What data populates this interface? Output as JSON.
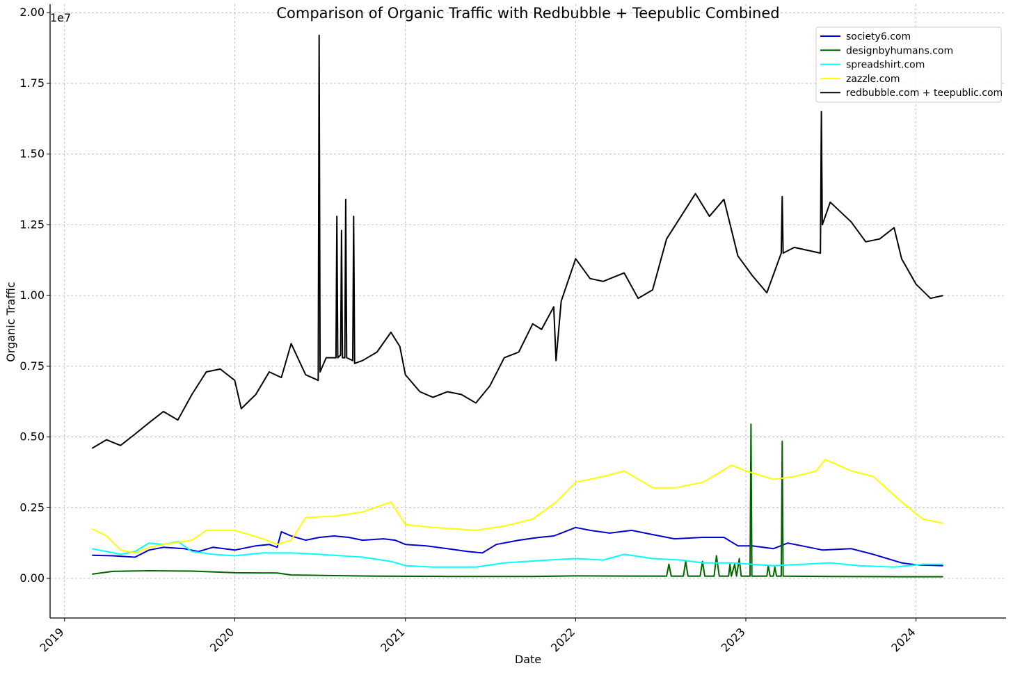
{
  "chart_data": {
    "type": "line",
    "title": "Comparison of Organic Traffic with Redbubble + Teepublic Combined",
    "xlabel": "Date",
    "ylabel": "Organic Traffic",
    "y_offset_label": "1e7",
    "x_type": "date",
    "xlim": [
      "2018-12-01",
      "2024-07-12"
    ],
    "ylim": [
      -1400000,
      20300000
    ],
    "x_ticks": [
      {
        "value": "2019-01-01",
        "label": "2019"
      },
      {
        "value": "2020-01-01",
        "label": "2020"
      },
      {
        "value": "2021-01-01",
        "label": "2021"
      },
      {
        "value": "2022-01-01",
        "label": "2022"
      },
      {
        "value": "2023-01-01",
        "label": "2023"
      },
      {
        "value": "2024-01-01",
        "label": "2024"
      }
    ],
    "y_ticks": [
      {
        "value": 0,
        "label": "0.00"
      },
      {
        "value": 2500000,
        "label": "0.25"
      },
      {
        "value": 5000000,
        "label": "0.50"
      },
      {
        "value": 7500000,
        "label": "0.75"
      },
      {
        "value": 10000000,
        "label": "1.00"
      },
      {
        "value": 12500000,
        "label": "1.25"
      },
      {
        "value": 15000000,
        "label": "1.50"
      },
      {
        "value": 17500000,
        "label": "1.75"
      },
      {
        "value": 20000000,
        "label": "2.00"
      }
    ],
    "grid": true,
    "legend_position": "top-right",
    "series": [
      {
        "name": "society6.com",
        "color": "#0000cd",
        "points": [
          [
            "2019-03-01",
            820000
          ],
          [
            "2019-04-15",
            800000
          ],
          [
            "2019-06-01",
            750000
          ],
          [
            "2019-07-01",
            1000000
          ],
          [
            "2019-08-01",
            1100000
          ],
          [
            "2019-09-15",
            1050000
          ],
          [
            "2019-10-15",
            950000
          ],
          [
            "2019-11-15",
            1100000
          ],
          [
            "2020-01-01",
            1000000
          ],
          [
            "2020-02-15",
            1150000
          ],
          [
            "2020-03-15",
            1200000
          ],
          [
            "2020-04-01",
            1100000
          ],
          [
            "2020-04-10",
            1650000
          ],
          [
            "2020-05-01",
            1500000
          ],
          [
            "2020-06-01",
            1350000
          ],
          [
            "2020-07-01",
            1450000
          ],
          [
            "2020-08-01",
            1500000
          ],
          [
            "2020-09-01",
            1450000
          ],
          [
            "2020-10-01",
            1350000
          ],
          [
            "2020-11-15",
            1400000
          ],
          [
            "2020-12-10",
            1350000
          ],
          [
            "2021-01-01",
            1200000
          ],
          [
            "2021-02-15",
            1150000
          ],
          [
            "2021-04-01",
            1050000
          ],
          [
            "2021-05-15",
            950000
          ],
          [
            "2021-06-15",
            900000
          ],
          [
            "2021-07-15",
            1200000
          ],
          [
            "2021-09-01",
            1350000
          ],
          [
            "2021-10-15",
            1450000
          ],
          [
            "2021-11-15",
            1500000
          ],
          [
            "2021-12-01",
            1600000
          ],
          [
            "2022-01-01",
            1800000
          ],
          [
            "2022-02-01",
            1700000
          ],
          [
            "2022-03-15",
            1600000
          ],
          [
            "2022-05-01",
            1700000
          ],
          [
            "2022-06-15",
            1550000
          ],
          [
            "2022-08-01",
            1400000
          ],
          [
            "2022-10-01",
            1450000
          ],
          [
            "2022-11-15",
            1450000
          ],
          [
            "2022-12-15",
            1150000
          ],
          [
            "2023-01-15",
            1150000
          ],
          [
            "2023-03-01",
            1050000
          ],
          [
            "2023-04-01",
            1250000
          ],
          [
            "2023-05-01",
            1150000
          ],
          [
            "2023-06-15",
            1000000
          ],
          [
            "2023-08-15",
            1050000
          ],
          [
            "2023-10-01",
            850000
          ],
          [
            "2023-12-01",
            550000
          ],
          [
            "2024-01-01",
            480000
          ],
          [
            "2024-02-28",
            450000
          ]
        ]
      },
      {
        "name": "designbyhumans.com",
        "color": "#006400",
        "points": [
          [
            "2019-03-01",
            150000
          ],
          [
            "2019-04-15",
            250000
          ],
          [
            "2019-07-01",
            270000
          ],
          [
            "2019-10-01",
            260000
          ],
          [
            "2020-01-01",
            200000
          ],
          [
            "2020-04-01",
            190000
          ],
          [
            "2020-05-01",
            120000
          ],
          [
            "2020-08-01",
            100000
          ],
          [
            "2020-11-01",
            80000
          ],
          [
            "2021-04-01",
            70000
          ],
          [
            "2021-10-01",
            70000
          ],
          [
            "2022-01-01",
            90000
          ],
          [
            "2022-07-15",
            80000
          ],
          [
            "2022-07-20",
            500000
          ],
          [
            "2022-07-25",
            80000
          ],
          [
            "2022-08-20",
            80000
          ],
          [
            "2022-08-25",
            600000
          ],
          [
            "2022-08-30",
            80000
          ],
          [
            "2022-09-25",
            80000
          ],
          [
            "2022-09-30",
            600000
          ],
          [
            "2022-10-05",
            80000
          ],
          [
            "2022-10-25",
            80000
          ],
          [
            "2022-10-30",
            800000
          ],
          [
            "2022-11-05",
            80000
          ],
          [
            "2022-11-25",
            80000
          ],
          [
            "2022-11-28",
            500000
          ],
          [
            "2022-12-01",
            80000
          ],
          [
            "2022-12-08",
            500000
          ],
          [
            "2022-12-12",
            80000
          ],
          [
            "2022-12-18",
            700000
          ],
          [
            "2022-12-22",
            80000
          ],
          [
            "2023-01-10",
            80000
          ],
          [
            "2023-01-12",
            5450000
          ],
          [
            "2023-01-14",
            80000
          ],
          [
            "2023-02-15",
            80000
          ],
          [
            "2023-02-18",
            450000
          ],
          [
            "2023-02-22",
            80000
          ],
          [
            "2023-03-01",
            80000
          ],
          [
            "2023-03-04",
            400000
          ],
          [
            "2023-03-08",
            80000
          ],
          [
            "2023-03-18",
            80000
          ],
          [
            "2023-03-20",
            4850000
          ],
          [
            "2023-03-22",
            80000
          ],
          [
            "2023-07-01",
            70000
          ],
          [
            "2023-12-01",
            60000
          ],
          [
            "2024-02-28",
            60000
          ]
        ]
      },
      {
        "name": "spreadshirt.com",
        "color": "#00ffff",
        "points": [
          [
            "2019-03-01",
            1050000
          ],
          [
            "2019-04-01",
            950000
          ],
          [
            "2019-05-01",
            850000
          ],
          [
            "2019-06-01",
            950000
          ],
          [
            "2019-07-01",
            1250000
          ],
          [
            "2019-08-01",
            1200000
          ],
          [
            "2019-09-01",
            1300000
          ],
          [
            "2019-10-01",
            950000
          ],
          [
            "2019-11-15",
            850000
          ],
          [
            "2020-01-01",
            800000
          ],
          [
            "2020-03-01",
            900000
          ],
          [
            "2020-05-01",
            900000
          ],
          [
            "2020-07-01",
            850000
          ],
          [
            "2020-10-01",
            750000
          ],
          [
            "2020-12-01",
            600000
          ],
          [
            "2021-01-01",
            450000
          ],
          [
            "2021-03-01",
            400000
          ],
          [
            "2021-06-01",
            400000
          ],
          [
            "2021-08-01",
            550000
          ],
          [
            "2021-11-01",
            650000
          ],
          [
            "2022-01-01",
            700000
          ],
          [
            "2022-03-01",
            650000
          ],
          [
            "2022-04-15",
            850000
          ],
          [
            "2022-06-15",
            700000
          ],
          [
            "2022-08-15",
            650000
          ],
          [
            "2022-10-01",
            550000
          ],
          [
            "2022-12-01",
            550000
          ],
          [
            "2023-01-15",
            500000
          ],
          [
            "2023-03-01",
            450000
          ],
          [
            "2023-05-01",
            500000
          ],
          [
            "2023-07-01",
            550000
          ],
          [
            "2023-09-01",
            450000
          ],
          [
            "2023-11-15",
            400000
          ],
          [
            "2024-01-15",
            500000
          ],
          [
            "2024-02-28",
            500000
          ]
        ]
      },
      {
        "name": "zazzle.com",
        "color": "#ffff00",
        "points": [
          [
            "2019-03-01",
            1750000
          ],
          [
            "2019-04-01",
            1500000
          ],
          [
            "2019-05-01",
            1000000
          ],
          [
            "2019-06-01",
            900000
          ],
          [
            "2019-07-01",
            1100000
          ],
          [
            "2019-08-01",
            1200000
          ],
          [
            "2019-10-01",
            1350000
          ],
          [
            "2019-11-01",
            1700000
          ],
          [
            "2020-01-01",
            1700000
          ],
          [
            "2020-03-01",
            1400000
          ],
          [
            "2020-04-01",
            1200000
          ],
          [
            "2020-05-01",
            1350000
          ],
          [
            "2020-06-01",
            2150000
          ],
          [
            "2020-08-01",
            2200000
          ],
          [
            "2020-10-01",
            2350000
          ],
          [
            "2020-12-01",
            2700000
          ],
          [
            "2021-01-01",
            1900000
          ],
          [
            "2021-03-01",
            1800000
          ],
          [
            "2021-06-01",
            1700000
          ],
          [
            "2021-08-01",
            1850000
          ],
          [
            "2021-10-01",
            2100000
          ],
          [
            "2021-11-20",
            2700000
          ],
          [
            "2022-01-01",
            3400000
          ],
          [
            "2022-03-01",
            3600000
          ],
          [
            "2022-04-15",
            3800000
          ],
          [
            "2022-06-15",
            3200000
          ],
          [
            "2022-08-01",
            3200000
          ],
          [
            "2022-10-01",
            3400000
          ],
          [
            "2022-11-01",
            3700000
          ],
          [
            "2022-12-01",
            4000000
          ],
          [
            "2023-01-01",
            3800000
          ],
          [
            "2023-03-01",
            3500000
          ],
          [
            "2023-04-15",
            3600000
          ],
          [
            "2023-06-01",
            3800000
          ],
          [
            "2023-06-20",
            4200000
          ],
          [
            "2023-08-15",
            3800000
          ],
          [
            "2023-10-01",
            3600000
          ],
          [
            "2023-12-01",
            2700000
          ],
          [
            "2024-01-15",
            2100000
          ],
          [
            "2024-02-28",
            1950000
          ]
        ]
      },
      {
        "name": "redbubble.com + teepublic.com",
        "color": "#000000",
        "points": [
          [
            "2019-03-01",
            4600000
          ],
          [
            "2019-04-01",
            4900000
          ],
          [
            "2019-05-01",
            4700000
          ],
          [
            "2019-06-01",
            5100000
          ],
          [
            "2019-07-01",
            5500000
          ],
          [
            "2019-08-01",
            5900000
          ],
          [
            "2019-09-01",
            5600000
          ],
          [
            "2019-10-01",
            6500000
          ],
          [
            "2019-11-01",
            7300000
          ],
          [
            "2019-12-01",
            7400000
          ],
          [
            "2020-01-01",
            7000000
          ],
          [
            "2020-01-15",
            6000000
          ],
          [
            "2020-02-15",
            6500000
          ],
          [
            "2020-03-15",
            7300000
          ],
          [
            "2020-04-10",
            7100000
          ],
          [
            "2020-05-01",
            8300000
          ],
          [
            "2020-06-01",
            7200000
          ],
          [
            "2020-06-28",
            7000000
          ],
          [
            "2020-06-30",
            19200000
          ],
          [
            "2020-07-02",
            7300000
          ],
          [
            "2020-07-15",
            7800000
          ],
          [
            "2020-08-05",
            7800000
          ],
          [
            "2020-08-07",
            12800000
          ],
          [
            "2020-08-09",
            7800000
          ],
          [
            "2020-08-15",
            7900000
          ],
          [
            "2020-08-17",
            12300000
          ],
          [
            "2020-08-19",
            7800000
          ],
          [
            "2020-08-24",
            7800000
          ],
          [
            "2020-08-26",
            13400000
          ],
          [
            "2020-08-28",
            7800000
          ],
          [
            "2020-09-10",
            7700000
          ],
          [
            "2020-09-12",
            12800000
          ],
          [
            "2020-09-14",
            7600000
          ],
          [
            "2020-10-01",
            7700000
          ],
          [
            "2020-11-01",
            8000000
          ],
          [
            "2020-12-01",
            8700000
          ],
          [
            "2020-12-20",
            8200000
          ],
          [
            "2021-01-01",
            7200000
          ],
          [
            "2021-02-01",
            6600000
          ],
          [
            "2021-03-01",
            6400000
          ],
          [
            "2021-04-01",
            6600000
          ],
          [
            "2021-05-01",
            6500000
          ],
          [
            "2021-06-01",
            6200000
          ],
          [
            "2021-07-01",
            6800000
          ],
          [
            "2021-08-01",
            7800000
          ],
          [
            "2021-09-01",
            8000000
          ],
          [
            "2021-10-01",
            9000000
          ],
          [
            "2021-10-20",
            8800000
          ],
          [
            "2021-11-15",
            9600000
          ],
          [
            "2021-11-20",
            7700000
          ],
          [
            "2021-12-01",
            9800000
          ],
          [
            "2022-01-01",
            11300000
          ],
          [
            "2022-02-01",
            10600000
          ],
          [
            "2022-03-01",
            10500000
          ],
          [
            "2022-04-15",
            10800000
          ],
          [
            "2022-05-15",
            9900000
          ],
          [
            "2022-06-15",
            10200000
          ],
          [
            "2022-07-15",
            12000000
          ],
          [
            "2022-08-15",
            12800000
          ],
          [
            "2022-09-15",
            13600000
          ],
          [
            "2022-10-15",
            12800000
          ],
          [
            "2022-11-15",
            13400000
          ],
          [
            "2022-12-15",
            11400000
          ],
          [
            "2023-01-15",
            10700000
          ],
          [
            "2023-02-15",
            10100000
          ],
          [
            "2023-03-18",
            11500000
          ],
          [
            "2023-03-20",
            13500000
          ],
          [
            "2023-03-22",
            11500000
          ],
          [
            "2023-04-15",
            11700000
          ],
          [
            "2023-06-10",
            11500000
          ],
          [
            "2023-06-12",
            16500000
          ],
          [
            "2023-06-14",
            12500000
          ],
          [
            "2023-07-01",
            13300000
          ],
          [
            "2023-08-15",
            12600000
          ],
          [
            "2023-09-15",
            11900000
          ],
          [
            "2023-10-15",
            12000000
          ],
          [
            "2023-11-15",
            12400000
          ],
          [
            "2023-12-01",
            11300000
          ],
          [
            "2024-01-01",
            10400000
          ],
          [
            "2024-02-01",
            9900000
          ],
          [
            "2024-02-28",
            10000000
          ]
        ]
      }
    ]
  }
}
